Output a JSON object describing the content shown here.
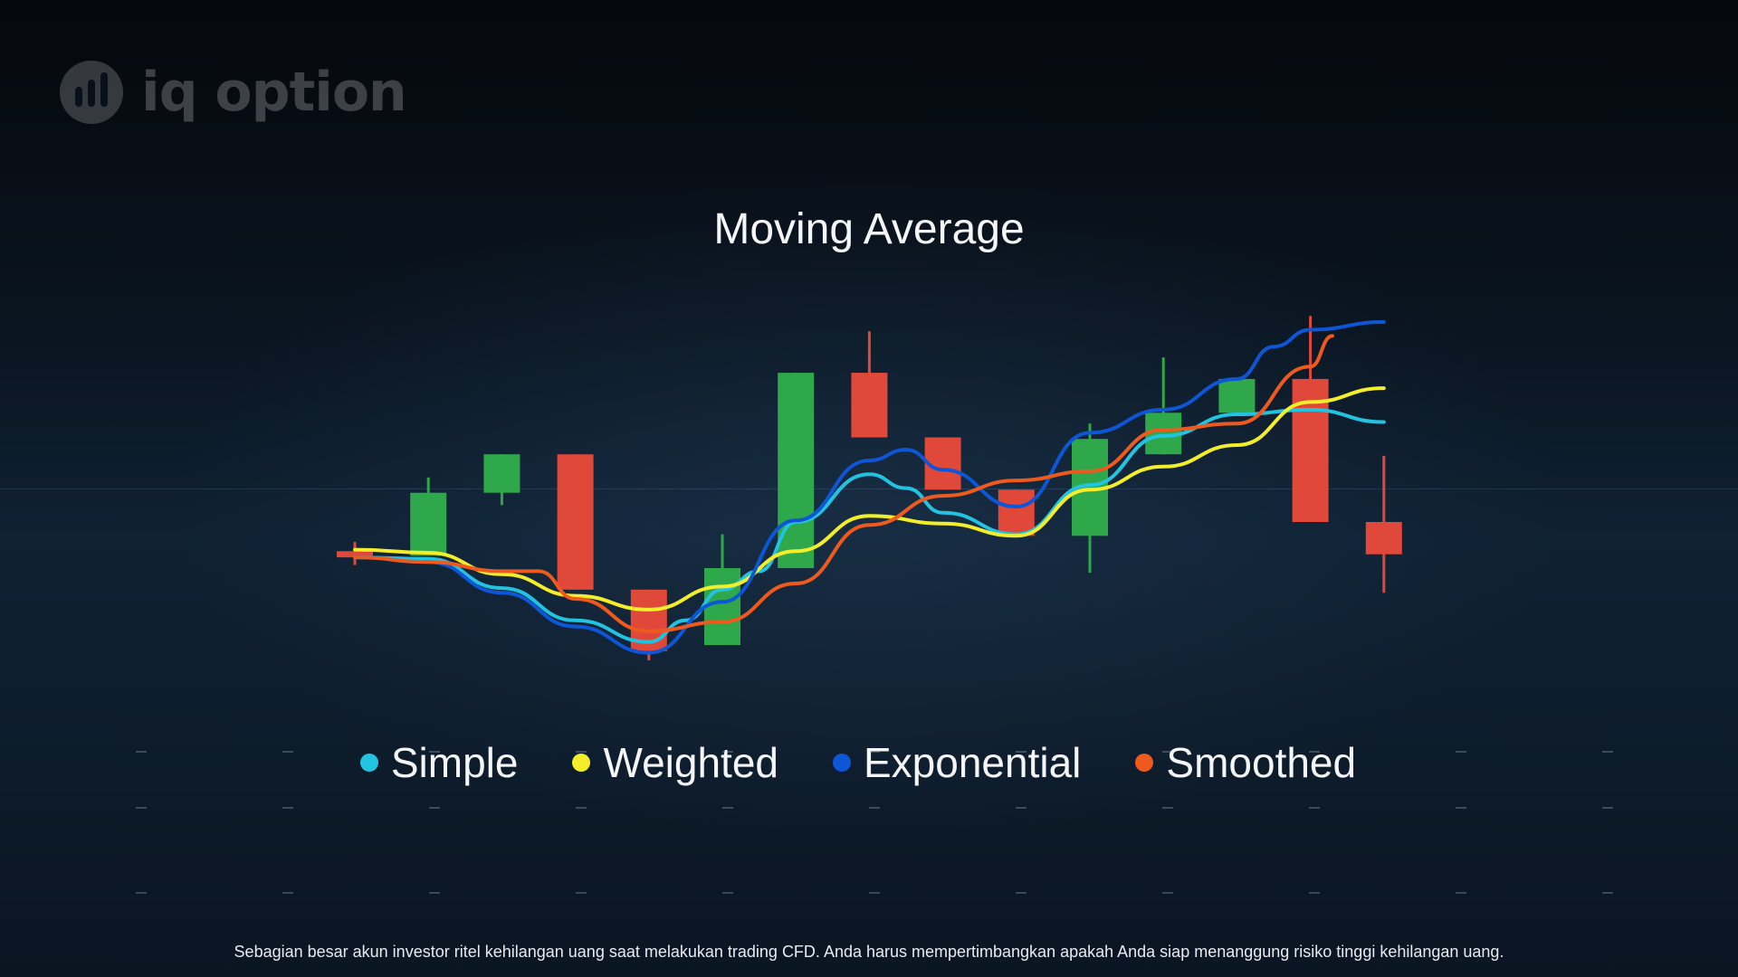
{
  "brand": {
    "logo_text": "iq option",
    "logo_icon": "bar-chart-circle-icon"
  },
  "disclaimer": "Sebagian besar akun investor ritel kehilangan uang saat melakukan trading CFD. Anda harus mempertimbangkan apakah Anda siap menanggung risiko tinggi kehilangan uang.",
  "colors": {
    "background": "#0b1420",
    "up_candle": "#2ea84a",
    "down_candle": "#e0483a",
    "simple": "#22c3e0",
    "weighted": "#f4ee2a",
    "exponential": "#0d56d6",
    "smoothed": "#ee5a1e"
  },
  "chart_data": {
    "type": "line",
    "title": "Moving Average",
    "xlabel": "",
    "ylabel": "",
    "ylim": [
      0,
      100
    ],
    "grid": false,
    "legend_placement": "bottom",
    "candles": [
      {
        "x": 0,
        "open": 30.5,
        "close": 28.5,
        "high": 33.5,
        "low": 26.0
      },
      {
        "x": 1,
        "open": 29.0,
        "close": 49.5,
        "high": 54.5,
        "low": 29.0
      },
      {
        "x": 2,
        "open": 49.5,
        "close": 62.0,
        "high": 62.0,
        "low": 45.5
      },
      {
        "x": 3,
        "open": 62.0,
        "close": 18.0,
        "high": 62.0,
        "low": 18.0
      },
      {
        "x": 4,
        "open": 18.0,
        "close": -2.0,
        "high": 18.0,
        "low": -5.0
      },
      {
        "x": 5,
        "open": 0.0,
        "close": 25.0,
        "high": 36.0,
        "low": 0.0
      },
      {
        "x": 6,
        "open": 25.0,
        "close": 88.5,
        "high": 88.5,
        "low": 25.0
      },
      {
        "x": 7,
        "open": 88.5,
        "close": 67.5,
        "high": 102.0,
        "low": 67.5
      },
      {
        "x": 8,
        "open": 67.5,
        "close": 50.5,
        "high": 67.5,
        "low": 50.5
      },
      {
        "x": 9,
        "open": 50.5,
        "close": 35.5,
        "high": 50.5,
        "low": 35.5
      },
      {
        "x": 10,
        "open": 35.5,
        "close": 67.0,
        "high": 72.0,
        "low": 23.5
      },
      {
        "x": 11,
        "open": 62.0,
        "close": 75.5,
        "high": 93.5,
        "low": 62.0
      },
      {
        "x": 12,
        "open": 75.5,
        "close": 86.5,
        "high": 86.5,
        "low": 75.5
      },
      {
        "x": 13,
        "open": 86.5,
        "close": 40.0,
        "high": 107.0,
        "low": 40.0
      },
      {
        "x": 14,
        "open": 40.0,
        "close": 29.5,
        "high": 61.5,
        "low": 17.0
      }
    ],
    "series": [
      {
        "name": "Simple",
        "x": [
          0,
          1,
          2,
          3,
          4,
          4.5,
          5,
          5.5,
          6,
          7,
          7.5,
          8,
          9,
          10,
          11,
          12,
          13,
          14
        ],
        "values": [
          28.5,
          28.0,
          18.5,
          8.0,
          1.0,
          8.0,
          18.0,
          24.0,
          40.0,
          55.5,
          51.0,
          43.0,
          36.0,
          52.0,
          68.0,
          75.0,
          76.5,
          72.5
        ]
      },
      {
        "name": "Weighted",
        "x": [
          0,
          1,
          2,
          3,
          4,
          5,
          6,
          7,
          8,
          9,
          10,
          11,
          12,
          13,
          14
        ],
        "values": [
          31.0,
          30.0,
          23.0,
          16.0,
          11.5,
          19.0,
          30.5,
          42.0,
          39.5,
          35.5,
          50.5,
          58.0,
          65.0,
          79.0,
          83.5
        ]
      },
      {
        "name": "Exponential",
        "x": [
          0,
          1,
          2,
          3,
          4,
          5,
          6,
          7,
          7.5,
          8,
          9,
          10,
          11,
          12,
          12.5,
          13,
          14
        ],
        "values": [
          28.5,
          27.0,
          17.0,
          6.0,
          -2.5,
          14.0,
          40.5,
          60.0,
          63.5,
          57.0,
          45.0,
          69.0,
          76.5,
          86.5,
          97.0,
          102.5,
          105.0
        ]
      },
      {
        "name": "Smoothed",
        "x": [
          0,
          1,
          2,
          2.5,
          3,
          4,
          5,
          6,
          7,
          8,
          9,
          10,
          11,
          12,
          13,
          13.3
        ],
        "values": [
          28.5,
          27.0,
          24.0,
          24.0,
          15.0,
          4.5,
          7.5,
          20.0,
          39.0,
          48.5,
          53.5,
          56.5,
          70.0,
          72.0,
          90.5,
          100.5
        ]
      }
    ]
  }
}
